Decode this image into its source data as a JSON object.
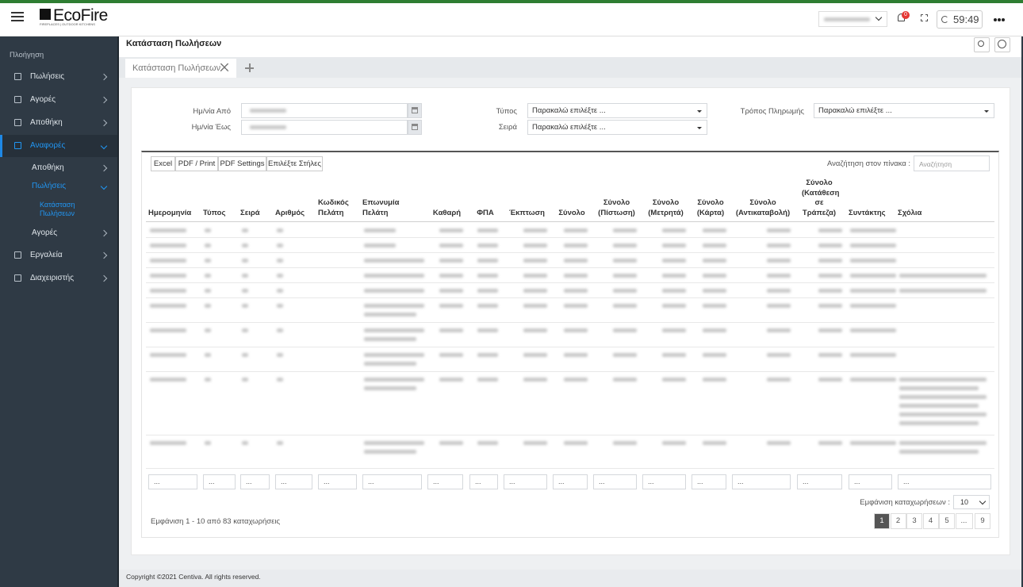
{
  "header": {
    "logo": "EcoFire",
    "logo_tagline": "FIREPLACES | OUTDOOR KITCHENS",
    "notification_count": "0",
    "session_timer": "59:49"
  },
  "sidebar": {
    "title": "Πλοήγηση",
    "items": [
      {
        "label": "Πωλήσεις",
        "level": 1,
        "active": false
      },
      {
        "label": "Αγορές",
        "level": 1,
        "active": false
      },
      {
        "label": "Αποθήκη",
        "level": 1,
        "active": false
      },
      {
        "label": "Αναφορές",
        "level": 1,
        "active": true
      },
      {
        "label": "Αποθήκη",
        "level": 2,
        "active": false
      },
      {
        "label": "Πωλήσεις",
        "level": 2,
        "active": true
      },
      {
        "label": "Κατάσταση Πωλήσεων",
        "level": 3,
        "active": true
      },
      {
        "label": "Αγορές",
        "level": 2,
        "active": false
      },
      {
        "label": "Εργαλεία",
        "level": 1,
        "active": false
      },
      {
        "label": "Διαχειριστής",
        "level": 1,
        "active": false
      }
    ]
  },
  "page": {
    "title": "Κατάσταση Πωλήσεων",
    "tab": "Κατάσταση Πωλήσεων"
  },
  "filters": {
    "date_from": "Ημ/νία Από",
    "date_to": "Ημ/νία Έως",
    "type": "Τύπος",
    "series": "Σειρά",
    "payment_method": "Τρόπος Πληρωμής",
    "select_placeholder": "Παρακαλώ επιλέξτε ..."
  },
  "toolbar": {
    "buttons": [
      "Excel",
      "PDF / Print",
      "PDF Settings",
      "Επιλέξτε Στήλες"
    ],
    "search_label": "Αναζήτηση στον πίνακα :",
    "search_placeholder": "Αναζήτηση"
  },
  "table": {
    "columns": [
      "Ημερομηνία",
      "Τύπος",
      "Σειρά",
      "Αριθμός",
      "Κωδικός Πελάτη",
      "Επωνυμία Πελάτη",
      "Καθαρή",
      "ΦΠΑ",
      "Έκπτωση",
      "Σύνολο",
      "Σύνολο (Πίστωση)",
      "Σύνολο (Μετρητά)",
      "Σύνολο (Κάρτα)",
      "Σύνολο (Αντικαταβολή)",
      "Σύνολο (Κατάθεση σε Τράπεζα)",
      "Συντάκτης",
      "Σχόλια"
    ],
    "column_filter_placeholder": "...",
    "page_length_label": "Εμφάνιση καταχωρήσεων :",
    "page_length": "10",
    "info": "Εμφάνιση 1 - 10 από 83 καταχωρήσεις",
    "pages": [
      "1",
      "2",
      "3",
      "4",
      "5",
      "...",
      "9"
    ],
    "current_page": "1"
  },
  "footer": {
    "copyright": "Copyright ©2021 Centiva. All rights reserved."
  }
}
